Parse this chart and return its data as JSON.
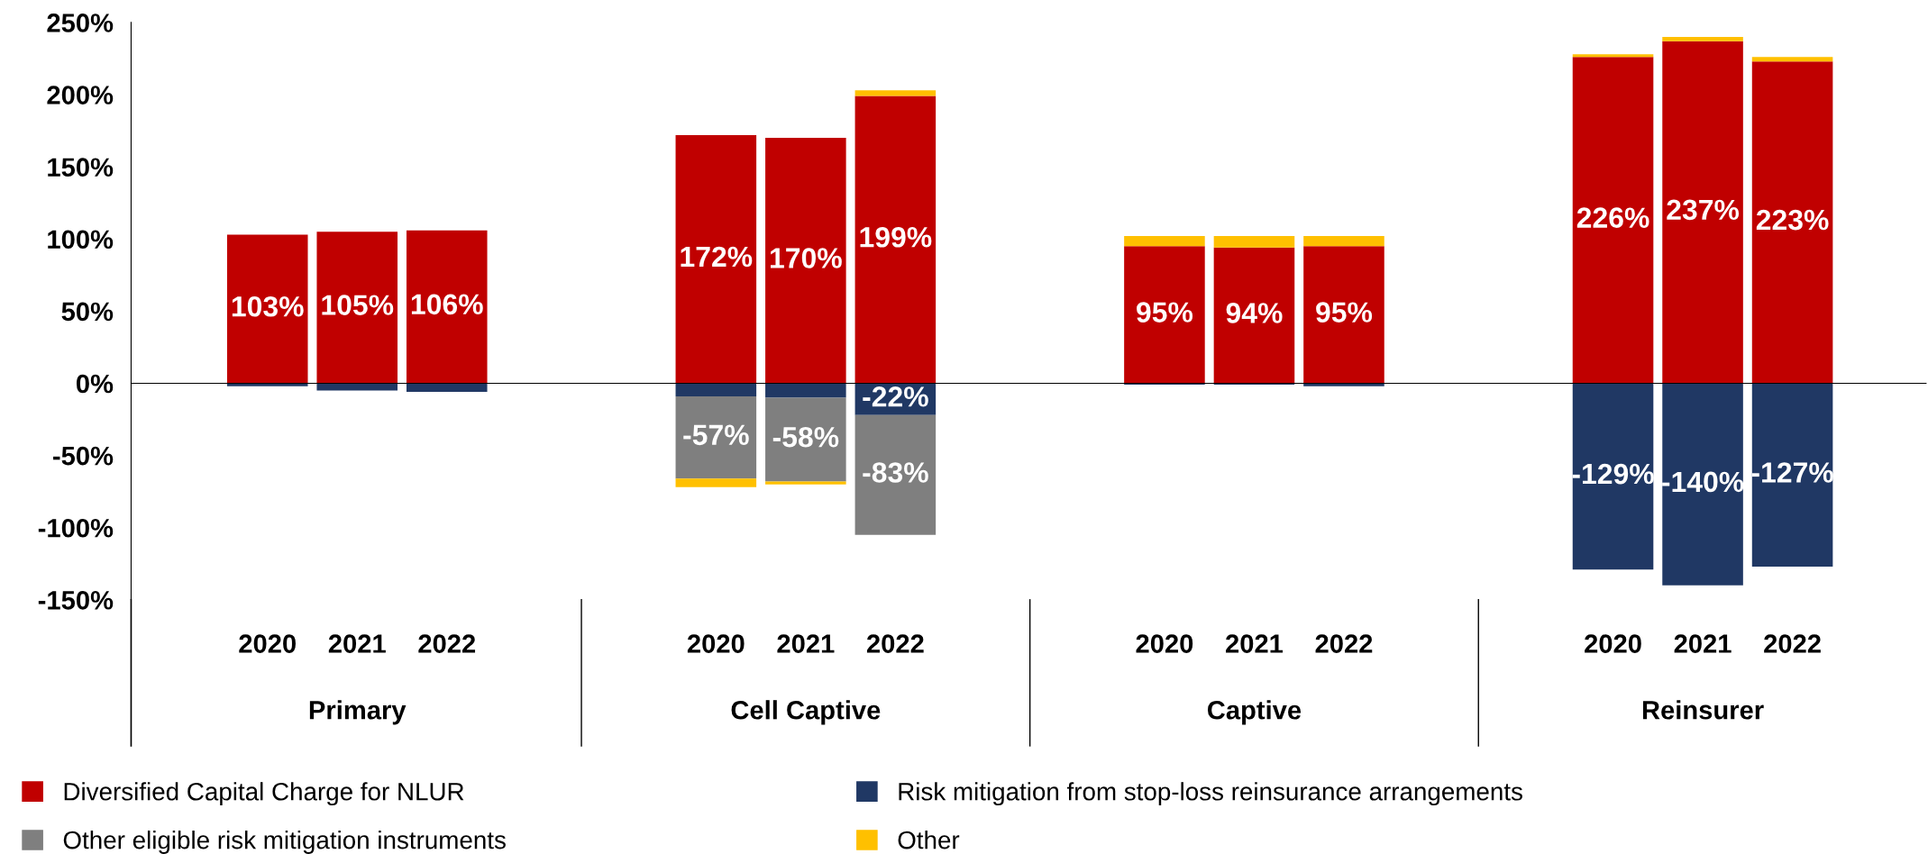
{
  "chart_data": {
    "type": "bar",
    "stacked": true,
    "categories": [
      "2020",
      "2021",
      "2022",
      "2020",
      "2021",
      "2022",
      "2020",
      "2021",
      "2022",
      "2020",
      "2021",
      "2022"
    ],
    "annotations": [
      "Primary",
      "Cell Captive",
      "Captive",
      "Reinsurer"
    ],
    "series": [
      {
        "name": "Diversified Capital Charge for NLUR",
        "color": "#c00000",
        "values": [
          103,
          105,
          106,
          172,
          170,
          199,
          95,
          94,
          95,
          226,
          237,
          223
        ],
        "value_labels": [
          "103%",
          "105%",
          "106%",
          "172%",
          "170%",
          "199%",
          "95%",
          "94%",
          "95%",
          "226%",
          "237%",
          "223%"
        ]
      },
      {
        "name": "Risk mitigation from stop-loss reinsurance arrangements",
        "color": "#203864",
        "values": [
          -2,
          -5,
          -6,
          -9,
          -10,
          -22,
          -1,
          -1,
          -2,
          -129,
          -140,
          -127
        ],
        "value_labels": [
          null,
          null,
          null,
          null,
          null,
          "-22%",
          null,
          null,
          null,
          "-129%",
          "-140%",
          "-127%"
        ]
      },
      {
        "name": "Other eligible risk mitigation instruments",
        "color": "#7f7f7f",
        "values": [
          null,
          null,
          null,
          -57,
          -58,
          -83,
          null,
          null,
          null,
          null,
          null,
          null
        ],
        "value_labels": [
          null,
          null,
          null,
          "-57%",
          "-58%",
          "-83%",
          null,
          null,
          null,
          null,
          null,
          null
        ]
      },
      {
        "name": "Other",
        "color": "#ffc000",
        "values": [
          null,
          null,
          null,
          -6,
          -2,
          4,
          7,
          8,
          7,
          2,
          3,
          3
        ]
      }
    ],
    "ylim": [
      -150,
      250
    ],
    "yticks": [
      {
        "value": -150,
        "label": "-150%"
      },
      {
        "value": -100,
        "label": "-100%"
      },
      {
        "value": -50,
        "label": "-50%"
      },
      {
        "value": 0,
        "label": "0%"
      },
      {
        "value": 50,
        "label": "50%"
      },
      {
        "value": 100,
        "label": "100%"
      },
      {
        "value": 150,
        "label": "150%"
      },
      {
        "value": 200,
        "label": "200%"
      },
      {
        "value": 250,
        "label": "250%"
      }
    ],
    "legend": "bottom"
  }
}
